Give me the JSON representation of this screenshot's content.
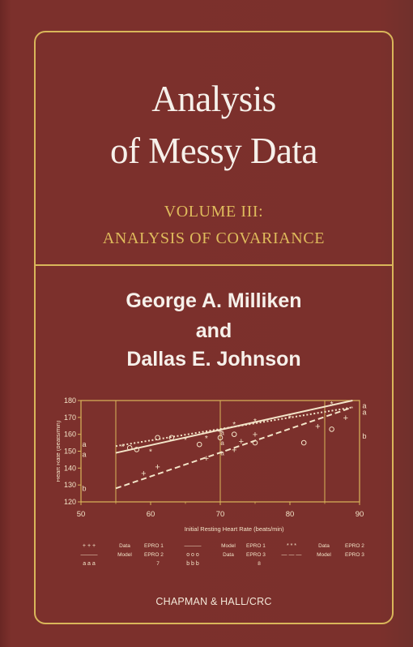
{
  "book": {
    "title_line1": "Analysis",
    "title_line2": "of Messy Data",
    "subtitle_line1": "VOLUME III:",
    "subtitle_line2": "ANALYSIS OF COVARIANCE",
    "author1": "George A. Milliken",
    "author_joiner": "and",
    "author2": "Dallas E. Johnson",
    "publisher": "CHAPMAN & HALL/CRC"
  },
  "colors": {
    "background": "#7a2f2b",
    "gold": "#d9b65a",
    "text": "#f6f0ea"
  },
  "chart_data": {
    "type": "scatter",
    "title": "",
    "xlabel": "Initial Resting Heart Rate (beats/min)",
    "ylabel": "Heart Rate (beats/min)",
    "xlim": [
      50,
      90
    ],
    "ylim": [
      120,
      180
    ],
    "xticks": [
      "50",
      "60",
      "70",
      "80",
      "90"
    ],
    "yticks": [
      "120",
      "130",
      "140",
      "150",
      "160",
      "170",
      "180"
    ],
    "vlines": [
      55,
      70,
      85
    ],
    "line_labels_left": [
      {
        "text": "a",
        "y": 154
      },
      {
        "text": "a",
        "y": 148
      },
      {
        "text": "b",
        "y": 128
      }
    ],
    "line_labels_right": [
      {
        "text": "a",
        "y": 177
      },
      {
        "text": "a",
        "y": 173
      },
      {
        "text": "b",
        "y": 159
      }
    ],
    "mid_labels": [
      {
        "text": "a",
        "x": 70.3,
        "y": 161
      },
      {
        "text": "a",
        "x": 70.3,
        "y": 155
      },
      {
        "text": "a",
        "x": 70.3,
        "y": 149
      }
    ],
    "series": [
      {
        "label": "EPRO 1",
        "marker": "+",
        "line_style": "solid",
        "points": [
          [
            59,
            137
          ],
          [
            61,
            141
          ],
          [
            68,
            146
          ],
          [
            72,
            151
          ],
          [
            75,
            160
          ],
          [
            84,
            165
          ],
          [
            88,
            170
          ],
          [
            70,
            162
          ],
          [
            73,
            156
          ]
        ],
        "fit": [
          [
            55,
            149
          ],
          [
            89,
            180
          ]
        ]
      },
      {
        "label": "EPRO 2",
        "marker": "*",
        "line_style": "dotted",
        "points": [
          [
            56,
            153
          ],
          [
            60,
            150
          ],
          [
            65,
            157
          ],
          [
            72,
            166
          ],
          [
            75,
            168
          ],
          [
            80,
            170
          ],
          [
            86,
            178
          ],
          [
            68,
            158
          ]
        ],
        "fit": [
          [
            55,
            153
          ],
          [
            89,
            176
          ]
        ]
      },
      {
        "label": "EPRO 3",
        "marker": "o",
        "line_style": "dashed",
        "points": [
          [
            57,
            152
          ],
          [
            58,
            151
          ],
          [
            61,
            158
          ],
          [
            63,
            158
          ],
          [
            67,
            154
          ],
          [
            70,
            158
          ],
          [
            72,
            160
          ],
          [
            75,
            155
          ],
          [
            82,
            155
          ],
          [
            86,
            163
          ]
        ],
        "fit": [
          [
            55,
            128
          ],
          [
            89,
            176
          ]
        ]
      }
    ],
    "legend": {
      "rows": [
        [
          {
            "symbol": "+ + +",
            "kind": "Data",
            "label": "EPRO 1"
          },
          {
            "symbol": "———",
            "kind": "Model",
            "label": "EPRO 1"
          },
          {
            "symbol": "* * *",
            "kind": "Data",
            "label": "EPRO 2"
          }
        ],
        [
          {
            "symbol": "———",
            "kind": "Model",
            "label": "EPRO 2"
          },
          {
            "symbol": "o o o",
            "kind": "Data",
            "label": "EPRO 3"
          },
          {
            "symbol": "— — —",
            "kind": "Model",
            "label": "EPRO 3"
          }
        ]
      ],
      "letters_row": [
        "a a a",
        "7",
        "b b b",
        "8"
      ]
    }
  }
}
